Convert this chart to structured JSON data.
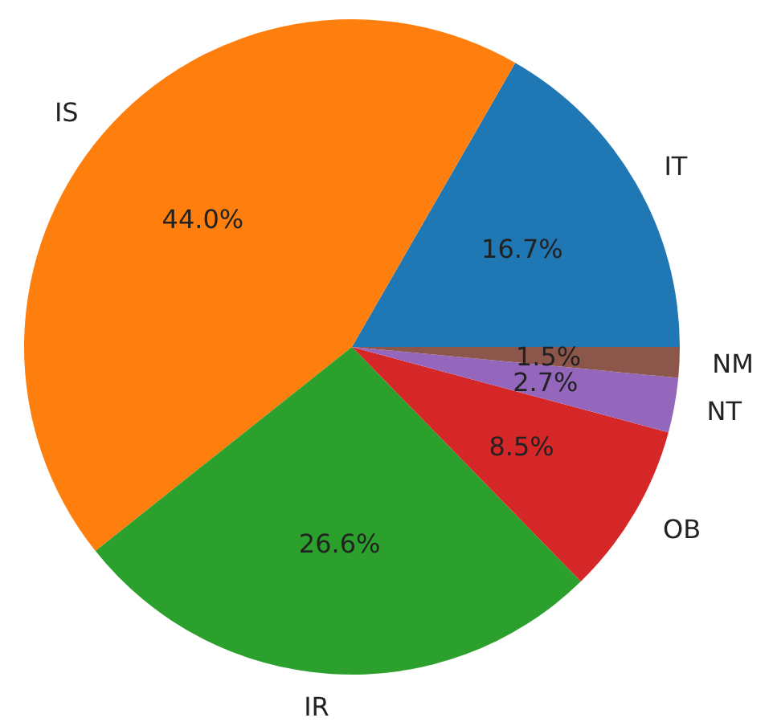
{
  "chart_data": {
    "type": "pie",
    "categories": [
      "IT",
      "IS",
      "IR",
      "OB",
      "NT",
      "NM"
    ],
    "values": [
      16.7,
      44.0,
      26.6,
      8.5,
      2.7,
      1.5
    ],
    "colors": [
      "#1f77b4",
      "#ff7f0e",
      "#2ca02c",
      "#d62728",
      "#9467bd",
      "#8c564b"
    ],
    "value_labels": [
      "16.7%",
      "44.0%",
      "26.6%",
      "8.5%",
      "2.7%",
      "1.5%"
    ]
  }
}
